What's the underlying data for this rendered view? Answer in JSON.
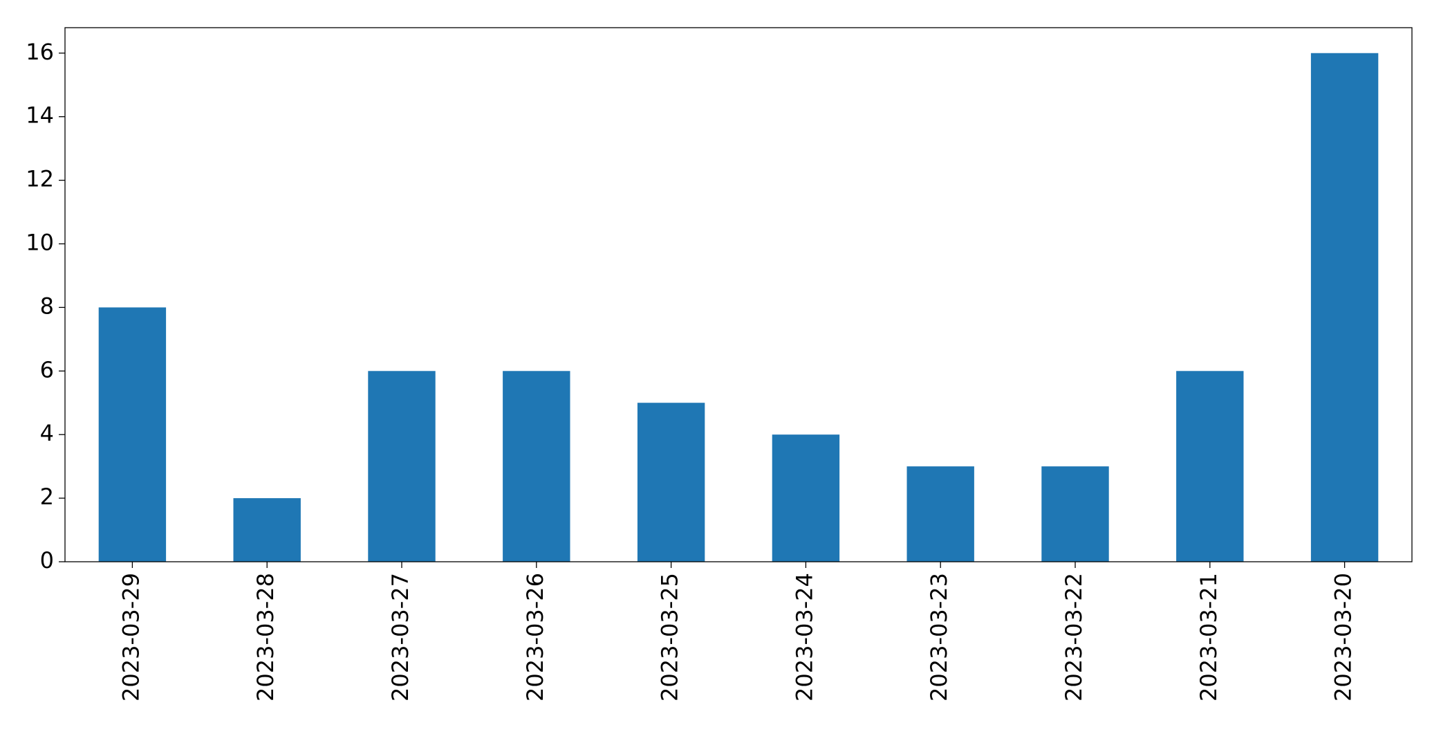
{
  "chart_data": {
    "type": "bar",
    "categories": [
      "2023-03-29",
      "2023-03-28",
      "2023-03-27",
      "2023-03-26",
      "2023-03-25",
      "2023-03-24",
      "2023-03-23",
      "2023-03-22",
      "2023-03-21",
      "2023-03-20"
    ],
    "values": [
      8,
      2,
      6,
      6,
      5,
      4,
      3,
      3,
      6,
      16
    ],
    "color": "#1f77b4",
    "ylim": [
      0,
      16.8
    ],
    "yticks": [
      0,
      2,
      4,
      6,
      8,
      10,
      12,
      14,
      16
    ],
    "grid": false
  }
}
